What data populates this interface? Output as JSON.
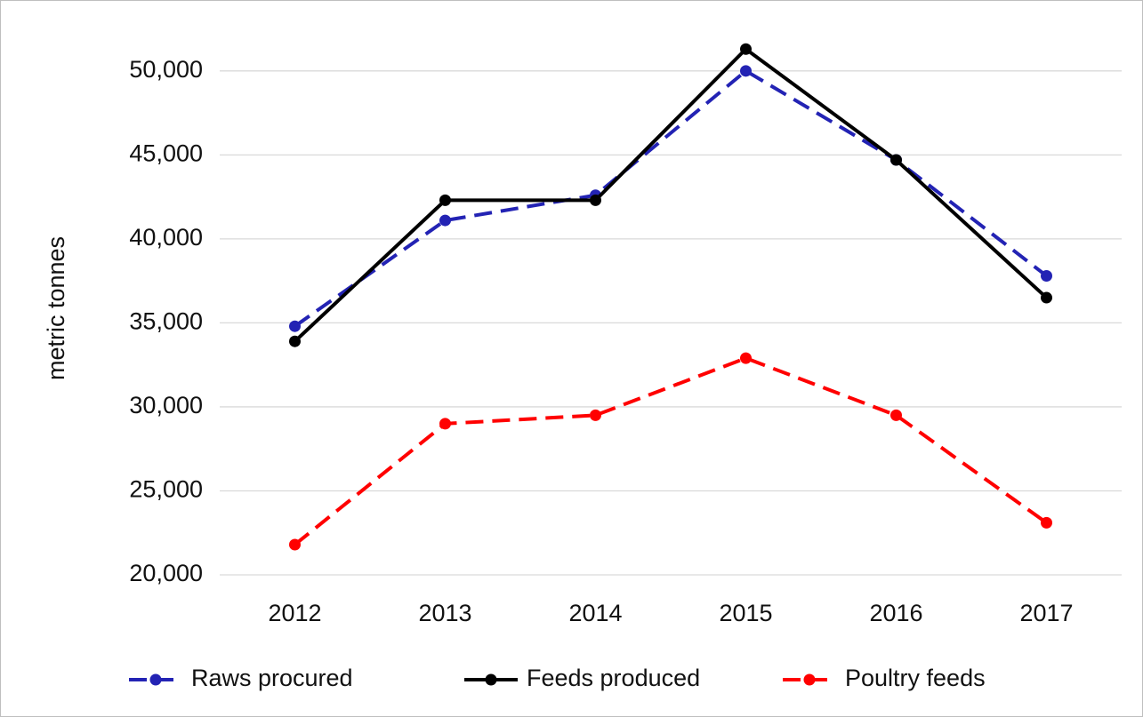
{
  "chart_data": {
    "type": "line",
    "y_label": "metric tonnes",
    "categories": [
      "2012",
      "2013",
      "2014",
      "2015",
      "2016",
      "2017"
    ],
    "series": [
      {
        "name": "Raws procured",
        "color": "#2323b4",
        "line_style": "dashed",
        "values": [
          34800,
          41100,
          42600,
          50000,
          44700,
          37800
        ]
      },
      {
        "name": "Feeds produced",
        "color": "#000000",
        "line_style": "solid",
        "values": [
          33900,
          42300,
          42300,
          51300,
          44700,
          36500
        ]
      },
      {
        "name": "Poultry feeds",
        "color": "#ff0000",
        "line_style": "dashed",
        "values": [
          21800,
          29000,
          29500,
          32900,
          29500,
          23100
        ]
      }
    ],
    "ylim": [
      20000,
      52000
    ],
    "yticks": [
      {
        "value": 20000,
        "label": "20,000"
      },
      {
        "value": 25000,
        "label": "25,000"
      },
      {
        "value": 30000,
        "label": "30,000"
      },
      {
        "value": 35000,
        "label": "35,000"
      },
      {
        "value": 40000,
        "label": "40,000"
      },
      {
        "value": 45000,
        "label": "45,000"
      },
      {
        "value": 50000,
        "label": "50,000"
      }
    ],
    "grid": true,
    "legend": "bottom"
  }
}
